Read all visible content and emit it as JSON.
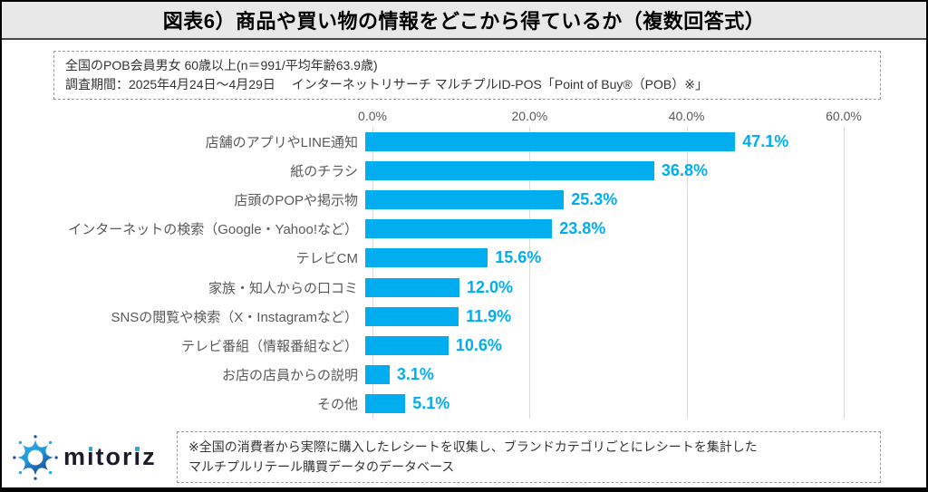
{
  "title": "図表6）商品や買い物の情報をどこから得ているか（複数回答式）",
  "survey_info": {
    "line1": "全国のPOB会員男女 60歳以上(n＝991/平均年齢63.9歳)",
    "line2": "調査期間：2025年4月24日～4月29日　 インターネットリサーチ マルチプルID-POS「Point of Buy®（POB）※」"
  },
  "chart_data": {
    "type": "bar",
    "orientation": "horizontal",
    "title": "",
    "xlabel": "",
    "ylabel": "",
    "xlim": [
      0,
      60
    ],
    "x_ticks": [
      "0.0%",
      "20.0%",
      "40.0%",
      "60.0%"
    ],
    "grid": true,
    "categories": [
      "店舗のアプリやLINE通知",
      "紙のチラシ",
      "店頭のPOPや掲示物",
      "インターネットの検索（Google・Yahoo!など）",
      "テレビCM",
      "家族・知人からの口コミ",
      "SNSの閲覧や検索（X・Instagramなど）",
      "テレビ番組（情報番組など）",
      "お店の店員からの説明",
      "その他"
    ],
    "values": [
      47.1,
      36.8,
      25.3,
      23.8,
      15.6,
      12.0,
      11.9,
      10.6,
      3.1,
      5.1
    ],
    "value_suffix": "%",
    "bar_color": "#00AEEF",
    "value_label_color": "#00AEEF",
    "grid_color": "#D9D9D9"
  },
  "footer": {
    "logo_text": "mitoriz",
    "note_line1": "※全国の消費者から実際に購入したレシートを収集し、ブランドカテゴリごとにレシートを集計した",
    "note_line2": "マルチプルリテール購買データのデータベース"
  },
  "colors": {
    "accent_blue": "#00AEEF",
    "titlebar_bg": "#E8E8E8",
    "logo_light_blue": "#29ABE2",
    "logo_dark_blue": "#1C4C9C",
    "text_gray": "#595959"
  }
}
